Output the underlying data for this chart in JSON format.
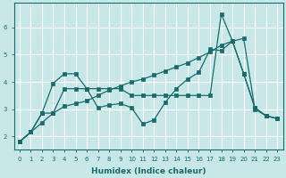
{
  "xlabel": "Humidex (Indice chaleur)",
  "ylabel": "",
  "xlim": [
    -0.5,
    23.5
  ],
  "ylim": [
    1.5,
    6.9
  ],
  "bg_color": "#c8e8e8",
  "grid_color": "#ffffff",
  "line_color": "#1a6b6b",
  "x_ticks": [
    0,
    1,
    2,
    3,
    4,
    5,
    6,
    7,
    8,
    9,
    10,
    11,
    12,
    13,
    14,
    15,
    16,
    17,
    18,
    19,
    20,
    21,
    22,
    23
  ],
  "y_ticks": [
    2,
    3,
    4,
    5,
    6
  ],
  "line1_x": [
    0,
    1,
    2,
    3,
    4,
    5,
    6,
    7,
    8,
    9,
    10,
    11,
    12,
    13,
    14,
    15,
    16,
    17,
    18,
    19,
    20,
    21,
    22,
    23
  ],
  "line1_y": [
    1.8,
    2.15,
    2.5,
    2.85,
    3.1,
    3.2,
    3.3,
    3.5,
    3.7,
    3.85,
    4.0,
    4.1,
    4.25,
    4.4,
    4.55,
    4.7,
    4.9,
    5.1,
    5.35,
    5.5,
    5.6,
    3.0,
    2.75,
    2.65
  ],
  "line2_x": [
    0,
    1,
    2,
    3,
    4,
    5,
    6,
    7,
    8,
    9,
    10,
    11,
    12,
    13,
    14,
    15,
    16,
    17,
    18,
    19,
    20,
    21,
    22,
    23
  ],
  "line2_y": [
    1.8,
    2.15,
    2.85,
    3.95,
    4.3,
    4.3,
    3.75,
    3.05,
    3.15,
    3.2,
    3.05,
    2.45,
    2.6,
    3.25,
    3.75,
    4.1,
    4.35,
    5.2,
    5.15,
    5.5,
    4.3,
    3.05,
    2.75,
    2.65
  ],
  "line3_x": [
    0,
    1,
    2,
    3,
    4,
    5,
    6,
    7,
    8,
    9,
    10,
    11,
    12,
    13,
    14,
    15,
    16,
    17,
    18,
    19,
    20,
    21,
    22,
    23
  ],
  "line3_y": [
    1.8,
    2.15,
    2.85,
    2.85,
    3.75,
    3.75,
    3.75,
    3.75,
    3.75,
    3.75,
    3.5,
    3.5,
    3.5,
    3.5,
    3.5,
    3.5,
    3.5,
    3.5,
    6.5,
    5.5,
    4.3,
    3.05,
    2.75,
    2.65
  ]
}
